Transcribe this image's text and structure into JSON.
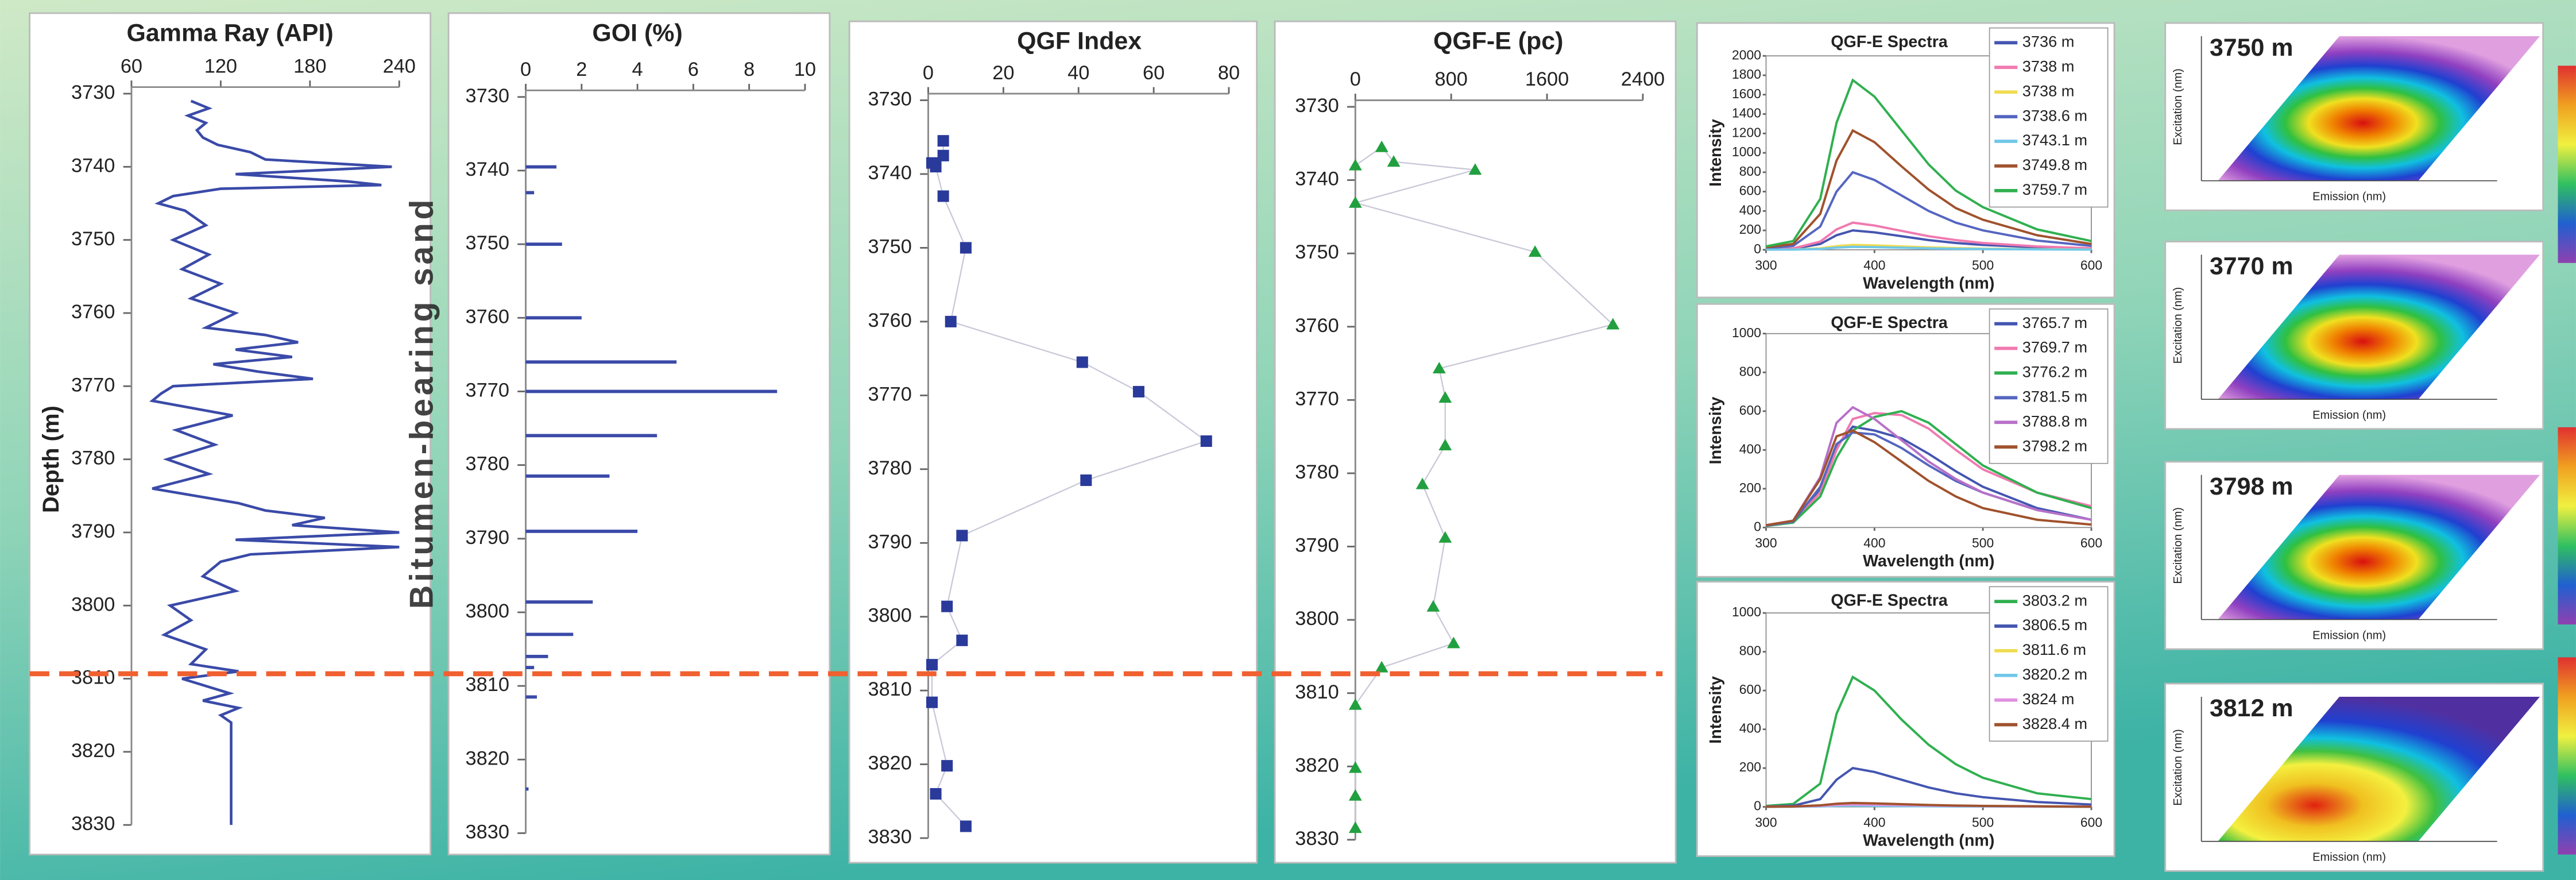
{
  "chart_data": [
    {
      "type": "depth-line",
      "title": "Gamma Ray (API)",
      "y_label": "Depth (m)",
      "annotation": "Bitumen-bearing sand",
      "color": "#3a4aa8",
      "xlim": [
        60,
        240
      ],
      "xticks": [
        60,
        120,
        180,
        240
      ],
      "ylim": [
        3730,
        3830
      ],
      "y_inverted": true,
      "yticks": [
        3730,
        3740,
        3750,
        3760,
        3770,
        3780,
        3790,
        3800,
        3810,
        3820,
        3830
      ],
      "grid": false,
      "depths": [
        3731,
        3732,
        3733,
        3734,
        3735,
        3736,
        3737,
        3738,
        3739,
        3740,
        3741,
        3742,
        3742.5,
        3743,
        3744,
        3745,
        3746,
        3748,
        3750,
        3752,
        3754,
        3756,
        3758,
        3760,
        3762,
        3763,
        3764,
        3765,
        3766,
        3767,
        3768,
        3769,
        3770,
        3771,
        3772,
        3774,
        3776,
        3778,
        3780,
        3782,
        3784,
        3786,
        3787,
        3788,
        3789,
        3790,
        3791,
        3792,
        3793,
        3794,
        3796,
        3798,
        3800,
        3802,
        3804,
        3806,
        3808,
        3809,
        3810,
        3812,
        3813,
        3814,
        3815,
        3816,
        3830
      ],
      "values": [
        100,
        112,
        98,
        110,
        104,
        108,
        118,
        140,
        150,
        235,
        130,
        205,
        228,
        120,
        88,
        78,
        96,
        110,
        88,
        112,
        94,
        120,
        100,
        130,
        110,
        150,
        172,
        130,
        168,
        115,
        145,
        182,
        88,
        80,
        74,
        128,
        90,
        116,
        84,
        112,
        74,
        132,
        150,
        190,
        168,
        240,
        130,
        240,
        140,
        120,
        108,
        130,
        86,
        100,
        82,
        110,
        100,
        132,
        94,
        126,
        108,
        132,
        120,
        127,
        127
      ]
    },
    {
      "type": "depth-bar",
      "title": "GOI (%)",
      "color": "#3a4aa8",
      "xlim": [
        0,
        10
      ],
      "xticks": [
        0,
        2,
        4,
        6,
        8,
        10
      ],
      "ylim": [
        3730,
        3830
      ],
      "y_inverted": true,
      "yticks": [
        3730,
        3740,
        3750,
        3760,
        3770,
        3780,
        3790,
        3800,
        3810,
        3820,
        3830
      ],
      "grid": false,
      "depths": [
        3739.5,
        3743,
        3750,
        3760,
        3766,
        3770,
        3776,
        3781.5,
        3789,
        3798.6,
        3803,
        3806,
        3807.5,
        3811.5,
        3824
      ],
      "values": [
        1.1,
        0.3,
        1.3,
        2.0,
        5.4,
        9.0,
        4.7,
        3.0,
        4.0,
        2.4,
        1.7,
        0.8,
        0.3,
        0.4,
        0.1
      ]
    },
    {
      "type": "depth-scatter",
      "title": "QGF Index",
      "color": "#2a3a9a",
      "marker": "square",
      "xlim": [
        0,
        80
      ],
      "xticks": [
        0,
        20,
        40,
        60,
        80
      ],
      "ylim": [
        3730,
        3830
      ],
      "y_inverted": true,
      "yticks": [
        3730,
        3740,
        3750,
        3760,
        3770,
        3780,
        3790,
        3800,
        3810,
        3820,
        3830
      ],
      "grid": false,
      "depths": [
        3735.5,
        3737.5,
        3738.5,
        3739,
        3743,
        3750,
        3760,
        3765.5,
        3769.5,
        3776.2,
        3781.5,
        3789,
        3798.6,
        3803.2,
        3806.5,
        3811.6,
        3820.2,
        3824,
        3828.4
      ],
      "values": [
        4,
        4,
        1,
        2,
        4,
        10,
        6,
        41,
        56,
        74,
        42,
        9,
        5,
        9,
        1,
        1,
        5,
        2,
        10
      ]
    },
    {
      "type": "depth-scatter",
      "title": "QGF-E (pc)",
      "color": "#22a040",
      "marker": "triangle",
      "xlim": [
        0,
        2400
      ],
      "xticks": [
        0,
        800,
        1600,
        2400
      ],
      "ylim": [
        3730,
        3830
      ],
      "y_inverted": true,
      "yticks": [
        3730,
        3740,
        3750,
        3760,
        3770,
        3780,
        3790,
        3800,
        3810,
        3820,
        3830
      ],
      "grid": false,
      "depths": [
        3738,
        3735.5,
        3737.5,
        3738.6,
        3743.1,
        3749.8,
        3759.7,
        3765.7,
        3769.7,
        3776.2,
        3781.5,
        3788.8,
        3798.2,
        3803.2,
        3806.5,
        3811.6,
        3820.2,
        3824,
        3828.4
      ],
      "values": [
        0,
        220,
        320,
        1000,
        0,
        1500,
        2150,
        700,
        750,
        750,
        560,
        750,
        650,
        820,
        220,
        0,
        0,
        0,
        0
      ]
    },
    {
      "type": "line",
      "title": "QGF-E Spectra",
      "x_label": "Wavelength (nm)",
      "y_label": "Intensity",
      "legend": "top-right",
      "xlim": [
        300,
        600
      ],
      "xticks": [
        300,
        400,
        500,
        600
      ],
      "ylim": [
        0,
        2000
      ],
      "yticks": [
        0,
        200,
        400,
        600,
        800,
        1000,
        1200,
        1400,
        1600,
        1800,
        2000
      ],
      "x": [
        300,
        325,
        350,
        365,
        380,
        400,
        425,
        450,
        475,
        500,
        550,
        600
      ],
      "series": [
        {
          "name": "3736 m",
          "color": "#4455b0",
          "values": [
            4,
            10,
            60,
            150,
            200,
            180,
            140,
            100,
            70,
            50,
            25,
            10
          ]
        },
        {
          "name": "3738 m",
          "color": "#f07ab0",
          "values": [
            5,
            14,
            85,
            210,
            280,
            250,
            195,
            140,
            100,
            70,
            35,
            15
          ]
        },
        {
          "name": "3738 m",
          "color": "#f0dc50",
          "values": [
            1,
            3,
            15,
            38,
            50,
            45,
            35,
            25,
            18,
            12,
            6,
            3
          ]
        },
        {
          "name": "3738.6 m",
          "color": "#5566c0",
          "values": [
            15,
            40,
            240,
            600,
            800,
            720,
            560,
            400,
            280,
            200,
            95,
            40
          ]
        },
        {
          "name": "3743.1 m",
          "color": "#70c8e8",
          "values": [
            1,
            2,
            9,
            22,
            30,
            27,
            21,
            15,
            10,
            8,
            4,
            2
          ]
        },
        {
          "name": "3749.8 m",
          "color": "#a0522d",
          "values": [
            25,
            60,
            370,
            920,
            1230,
            1110,
            860,
            620,
            430,
            310,
            150,
            60
          ]
        },
        {
          "name": "3759.7 m",
          "color": "#30b050",
          "values": [
            35,
            90,
            525,
            1310,
            1750,
            1580,
            1230,
            880,
            610,
            440,
            210,
            90
          ]
        }
      ]
    },
    {
      "type": "line",
      "title": "QGF-E Spectra",
      "x_label": "Wavelength (nm)",
      "y_label": "Intensity",
      "legend": "top-right",
      "xlim": [
        300,
        600
      ],
      "xticks": [
        300,
        400,
        500,
        600
      ],
      "ylim": [
        0,
        1000
      ],
      "yticks": [
        0,
        200,
        400,
        600,
        800,
        1000
      ],
      "x": [
        300,
        325,
        350,
        365,
        380,
        400,
        425,
        450,
        475,
        500,
        550,
        600
      ],
      "series": [
        {
          "name": "3765.7 m",
          "color": "#4455b0",
          "values": [
            10,
            30,
            200,
            420,
            520,
            500,
            460,
            380,
            290,
            210,
            100,
            40
          ]
        },
        {
          "name": "3769.7 m",
          "color": "#f07ab0",
          "values": [
            10,
            30,
            180,
            400,
            560,
            590,
            580,
            510,
            400,
            300,
            180,
            110
          ]
        },
        {
          "name": "3776.2 m",
          "color": "#30b050",
          "values": [
            8,
            25,
            160,
            360,
            500,
            570,
            600,
            540,
            430,
            320,
            180,
            100
          ]
        },
        {
          "name": "3781.5 m",
          "color": "#5566c0",
          "values": [
            10,
            30,
            210,
            430,
            490,
            480,
            410,
            320,
            240,
            180,
            90,
            40
          ]
        },
        {
          "name": "3788.8 m",
          "color": "#b870c8",
          "values": [
            12,
            35,
            260,
            540,
            620,
            560,
            450,
            340,
            250,
            180,
            90,
            40
          ]
        },
        {
          "name": "3798.2 m",
          "color": "#a0522d",
          "values": [
            12,
            35,
            250,
            470,
            500,
            440,
            340,
            240,
            160,
            100,
            40,
            15
          ]
        }
      ]
    },
    {
      "type": "line",
      "title": "QGF-E Spectra",
      "x_label": "Wavelength (nm)",
      "y_label": "Intensity",
      "legend": "top-right",
      "xlim": [
        300,
        600
      ],
      "xticks": [
        300,
        400,
        500,
        600
      ],
      "ylim": [
        0,
        1000
      ],
      "yticks": [
        0,
        200,
        400,
        600,
        800,
        1000
      ],
      "x": [
        300,
        325,
        350,
        365,
        380,
        400,
        425,
        450,
        475,
        500,
        550,
        600
      ],
      "series": [
        {
          "name": "3803.2 m",
          "color": "#30b050",
          "values": [
            5,
            15,
            120,
            480,
            670,
            600,
            450,
            320,
            220,
            150,
            70,
            40
          ]
        },
        {
          "name": "3806.5 m",
          "color": "#4455b0",
          "values": [
            2,
            6,
            40,
            140,
            200,
            180,
            140,
            100,
            70,
            50,
            25,
            12
          ]
        },
        {
          "name": "3811.6 m",
          "color": "#f0dc50",
          "values": [
            1,
            1,
            3,
            8,
            10,
            9,
            7,
            5,
            4,
            3,
            2,
            1
          ]
        },
        {
          "name": "3820.2 m",
          "color": "#70c8e8",
          "values": [
            0,
            1,
            2,
            5,
            6,
            5,
            4,
            3,
            2,
            2,
            1,
            0
          ]
        },
        {
          "name": "3824 m",
          "color": "#e090e0",
          "values": [
            1,
            2,
            5,
            10,
            12,
            11,
            9,
            7,
            5,
            4,
            2,
            1
          ]
        },
        {
          "name": "3828.4 m",
          "color": "#a0522d",
          "values": [
            1,
            2,
            8,
            16,
            20,
            18,
            14,
            10,
            7,
            5,
            3,
            1
          ]
        }
      ]
    }
  ],
  "eem_panels": [
    {
      "label": "3750 m"
    },
    {
      "label": "3770 m"
    },
    {
      "label": "3798 m"
    },
    {
      "label": "3812 m"
    }
  ],
  "eem_axes": {
    "x_label": "Emission (nm)",
    "y_label": "Excitation (nm)"
  }
}
